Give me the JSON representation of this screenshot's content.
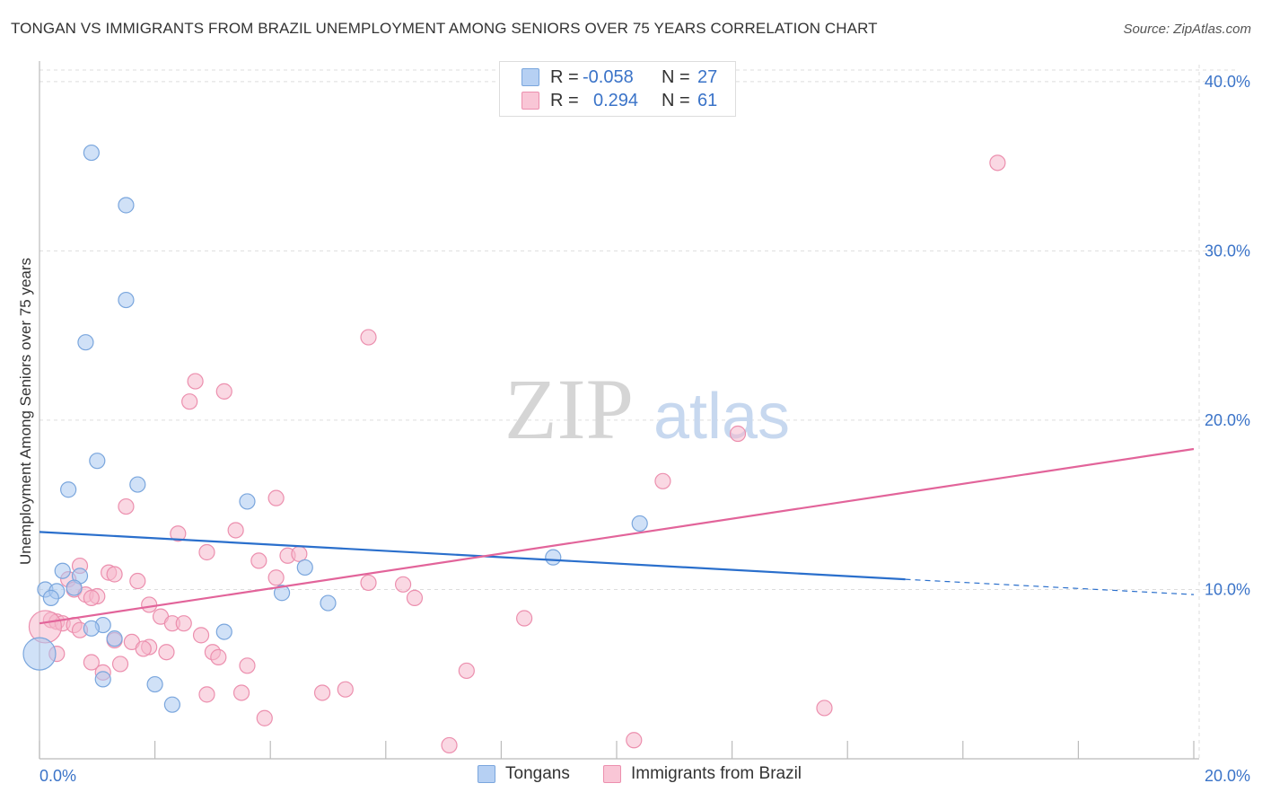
{
  "header": {
    "title": "TONGAN VS IMMIGRANTS FROM BRAZIL UNEMPLOYMENT AMONG SENIORS OVER 75 YEARS CORRELATION CHART",
    "source": "Source: ZipAtlas.com"
  },
  "watermark": {
    "zip": "ZIP",
    "atlas": "atlas"
  },
  "legend_top": {
    "rows": [
      {
        "r_label": "R =",
        "r_value": "-0.058",
        "n_label": "N =",
        "n_value": "27"
      },
      {
        "r_label": "R =",
        "r_value": "0.294",
        "n_label": "N =",
        "n_value": "61"
      }
    ]
  },
  "legend_bottom": {
    "items": [
      "Tongans",
      "Immigrants from Brazil"
    ]
  },
  "colors": {
    "tongans_fill": "#a9c8f0",
    "tongans_stroke": "#7aa6dd",
    "tongans_line": "#2a6fcc",
    "brazil_fill": "#f6b8cc",
    "brazil_stroke": "#ec8fae",
    "brazil_line": "#e2649a",
    "axis_text": "#3a73c8",
    "grid": "#dddddd"
  },
  "chart_data": {
    "type": "scatter",
    "title": "TONGAN VS IMMIGRANTS FROM BRAZIL UNEMPLOYMENT AMONG SENIORS OVER 75 YEARS CORRELATION CHART",
    "xlabel": "",
    "ylabel": "Unemployment Among Seniors over 75 years",
    "xlim": [
      0,
      20
    ],
    "ylim": [
      0,
      41
    ],
    "x_tick_labels": [
      "0.0%",
      "20.0%"
    ],
    "y_ticks": [
      10,
      20,
      30,
      40
    ],
    "y_tick_labels": [
      "10.0%",
      "20.0%",
      "30.0%",
      "40.0%"
    ],
    "grid": true,
    "legend_placement": "bottom",
    "series": [
      {
        "name": "Tongans",
        "r": -0.058,
        "n": 27,
        "trend": {
          "x0": 0,
          "y0": 13.4,
          "x1": 15,
          "y1": 10.6,
          "dash_to_x": 20,
          "dash_to_y": 9.7
        },
        "points": [
          [
            0.9,
            35.8
          ],
          [
            1.5,
            32.7
          ],
          [
            1.5,
            27.1
          ],
          [
            0.8,
            24.6
          ],
          [
            1.0,
            17.6
          ],
          [
            1.7,
            16.2
          ],
          [
            0.5,
            15.9
          ],
          [
            3.6,
            15.2
          ],
          [
            10.4,
            13.9
          ],
          [
            8.9,
            11.9
          ],
          [
            4.6,
            11.3
          ],
          [
            0.4,
            11.1
          ],
          [
            0.7,
            10.8
          ],
          [
            0.6,
            10.1
          ],
          [
            0.1,
            10.0
          ],
          [
            0.3,
            9.9
          ],
          [
            4.2,
            9.8
          ],
          [
            0.2,
            9.5
          ],
          [
            5.0,
            9.2
          ],
          [
            1.1,
            7.9
          ],
          [
            0.9,
            7.7
          ],
          [
            3.2,
            7.5
          ],
          [
            1.3,
            7.1
          ],
          [
            0.0,
            6.2
          ],
          [
            1.1,
            4.7
          ],
          [
            2.0,
            4.4
          ],
          [
            2.3,
            3.2
          ]
        ]
      },
      {
        "name": "Immigrants from Brazil",
        "r": 0.294,
        "n": 61,
        "trend": {
          "x0": 0,
          "y0": 8.0,
          "x1": 20,
          "y1": 18.3
        },
        "points": [
          [
            16.6,
            35.2
          ],
          [
            5.7,
            24.9
          ],
          [
            2.7,
            22.3
          ],
          [
            3.2,
            21.7
          ],
          [
            2.6,
            21.1
          ],
          [
            12.1,
            19.2
          ],
          [
            10.8,
            16.4
          ],
          [
            4.1,
            15.4
          ],
          [
            1.5,
            14.9
          ],
          [
            3.4,
            13.5
          ],
          [
            2.4,
            13.3
          ],
          [
            2.9,
            12.2
          ],
          [
            4.3,
            12.0
          ],
          [
            4.5,
            12.1
          ],
          [
            3.8,
            11.7
          ],
          [
            0.7,
            11.4
          ],
          [
            1.2,
            11.0
          ],
          [
            1.3,
            10.9
          ],
          [
            4.1,
            10.7
          ],
          [
            0.5,
            10.6
          ],
          [
            1.7,
            10.5
          ],
          [
            5.7,
            10.4
          ],
          [
            6.3,
            10.3
          ],
          [
            0.6,
            10.0
          ],
          [
            0.8,
            9.7
          ],
          [
            1.0,
            9.6
          ],
          [
            0.9,
            9.5
          ],
          [
            6.5,
            9.5
          ],
          [
            1.9,
            9.1
          ],
          [
            2.1,
            8.4
          ],
          [
            8.4,
            8.3
          ],
          [
            0.2,
            8.2
          ],
          [
            0.3,
            8.1
          ],
          [
            0.4,
            8.0
          ],
          [
            2.3,
            8.0
          ],
          [
            2.5,
            8.0
          ],
          [
            0.6,
            7.9
          ],
          [
            0.1,
            7.8
          ],
          [
            0.7,
            7.6
          ],
          [
            2.8,
            7.3
          ],
          [
            1.3,
            7.0
          ],
          [
            1.6,
            6.9
          ],
          [
            1.9,
            6.6
          ],
          [
            1.8,
            6.5
          ],
          [
            2.2,
            6.3
          ],
          [
            3.0,
            6.3
          ],
          [
            0.3,
            6.2
          ],
          [
            3.1,
            6.0
          ],
          [
            0.9,
            5.7
          ],
          [
            1.4,
            5.6
          ],
          [
            3.6,
            5.5
          ],
          [
            1.1,
            5.1
          ],
          [
            7.4,
            5.2
          ],
          [
            5.3,
            4.1
          ],
          [
            2.9,
            3.8
          ],
          [
            3.5,
            3.9
          ],
          [
            4.9,
            3.9
          ],
          [
            13.6,
            3.0
          ],
          [
            3.9,
            2.4
          ],
          [
            7.1,
            0.8
          ],
          [
            10.3,
            1.1
          ]
        ]
      }
    ]
  }
}
